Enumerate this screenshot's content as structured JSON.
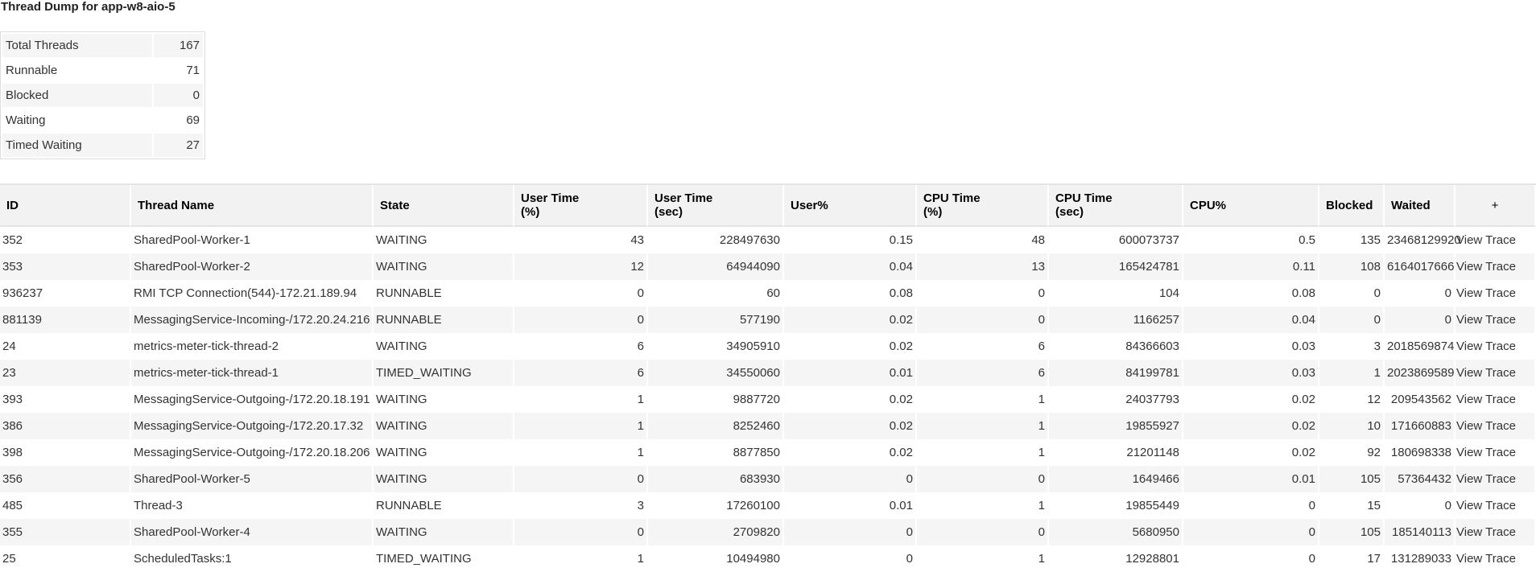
{
  "title": "Thread Dump for app-w8-aio-5",
  "summary": [
    {
      "label": "Total Threads",
      "value": "167"
    },
    {
      "label": "Runnable",
      "value": "71"
    },
    {
      "label": "Blocked",
      "value": "0"
    },
    {
      "label": "Waiting",
      "value": "69"
    },
    {
      "label": "Timed Waiting",
      "value": "27"
    }
  ],
  "columns": [
    "ID",
    "Thread Name",
    "State",
    "User Time\n(%)",
    "User Time\n(sec)",
    "User%",
    "CPU Time\n(%)",
    "CPU Time\n(sec)",
    "CPU%",
    "Blocked",
    "Waited",
    "+"
  ],
  "action_label": "View Trace",
  "rows": [
    [
      "352",
      "SharedPool-Worker-1",
      "WAITING",
      "43",
      "228497630",
      "0.15",
      "48",
      "600073737",
      "0.5",
      "135",
      "23468129920"
    ],
    [
      "353",
      "SharedPool-Worker-2",
      "WAITING",
      "12",
      "64944090",
      "0.04",
      "13",
      "165424781",
      "0.11",
      "108",
      "6164017666"
    ],
    [
      "936237",
      "RMI TCP Connection(544)-172.21.189.94",
      "RUNNABLE",
      "0",
      "60",
      "0.08",
      "0",
      "104",
      "0.08",
      "0",
      "0"
    ],
    [
      "881139",
      "MessagingService-Incoming-/172.20.24.216",
      "RUNNABLE",
      "0",
      "577190",
      "0.02",
      "0",
      "1166257",
      "0.04",
      "0",
      "0"
    ],
    [
      "24",
      "metrics-meter-tick-thread-2",
      "WAITING",
      "6",
      "34905910",
      "0.02",
      "6",
      "84366603",
      "0.03",
      "3",
      "2018569874"
    ],
    [
      "23",
      "metrics-meter-tick-thread-1",
      "TIMED_WAITING",
      "6",
      "34550060",
      "0.01",
      "6",
      "84199781",
      "0.03",
      "1",
      "2023869589"
    ],
    [
      "393",
      "MessagingService-Outgoing-/172.20.18.191",
      "WAITING",
      "1",
      "9887720",
      "0.02",
      "1",
      "24037793",
      "0.02",
      "12",
      "209543562"
    ],
    [
      "386",
      "MessagingService-Outgoing-/172.20.17.32",
      "WAITING",
      "1",
      "8252460",
      "0.02",
      "1",
      "19855927",
      "0.02",
      "10",
      "171660883"
    ],
    [
      "398",
      "MessagingService-Outgoing-/172.20.18.206",
      "WAITING",
      "1",
      "8877850",
      "0.02",
      "1",
      "21201148",
      "0.02",
      "92",
      "180698338"
    ],
    [
      "356",
      "SharedPool-Worker-5",
      "WAITING",
      "0",
      "683930",
      "0",
      "0",
      "1649466",
      "0.01",
      "105",
      "57364432"
    ],
    [
      "485",
      "Thread-3",
      "RUNNABLE",
      "3",
      "17260100",
      "0.01",
      "1",
      "19855449",
      "0",
      "15",
      "0"
    ],
    [
      "355",
      "SharedPool-Worker-4",
      "WAITING",
      "0",
      "2709820",
      "0",
      "0",
      "5680950",
      "0",
      "105",
      "185140113"
    ],
    [
      "25",
      "ScheduledTasks:1",
      "TIMED_WAITING",
      "1",
      "10494980",
      "0",
      "1",
      "12928801",
      "0",
      "17",
      "131289033"
    ]
  ]
}
